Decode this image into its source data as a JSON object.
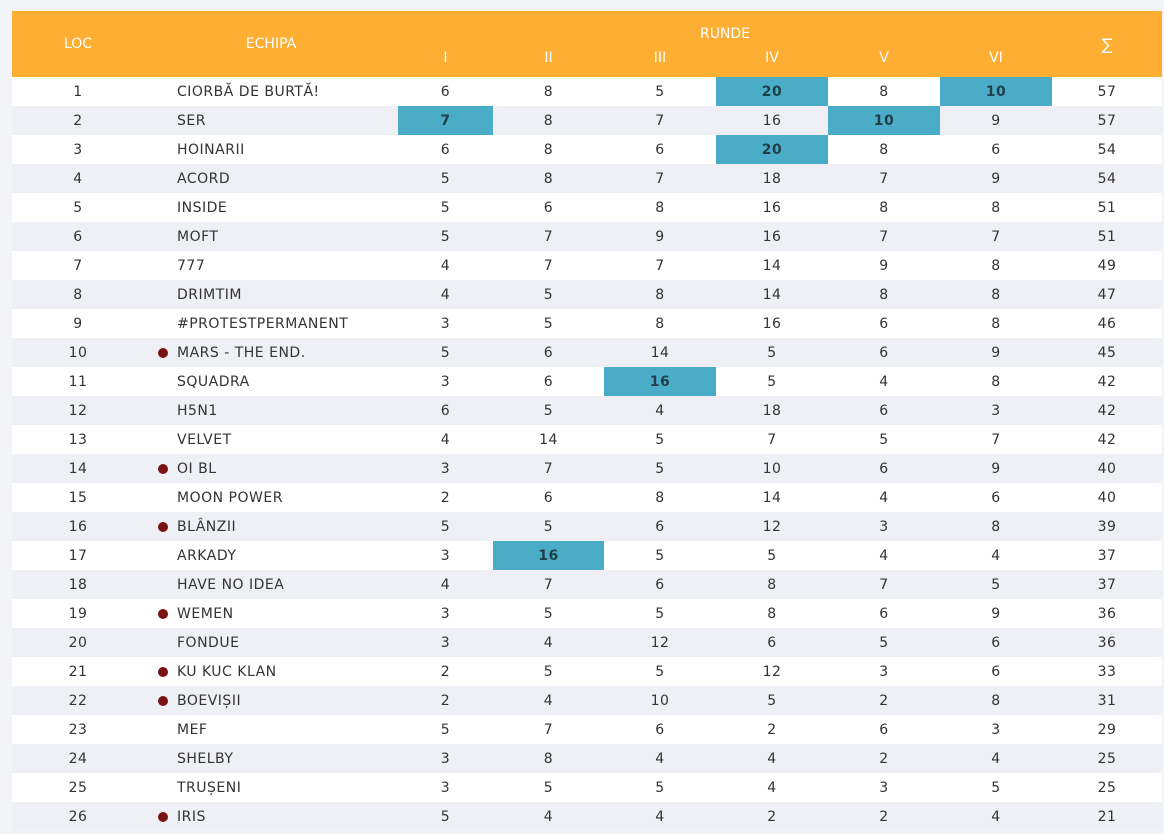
{
  "headers": {
    "loc": "LOC",
    "team": "ECHIPA",
    "rounds_group": "RUNDE",
    "rounds": [
      "I",
      "II",
      "III",
      "IV",
      "V",
      "VI"
    ],
    "sum": "∑"
  },
  "colors": {
    "header_bg": "#fdae33",
    "highlight": "#4aacc7",
    "marker_dot": "#7b1212",
    "row_alt": "#eef0f6"
  },
  "rows": [
    {
      "loc": "1",
      "team": "CIORBĂ DE BURTĂ!",
      "marker": false,
      "rounds": [
        "6",
        "8",
        "5",
        "20",
        "8",
        "10"
      ],
      "highlight": [
        false,
        false,
        false,
        true,
        false,
        true
      ],
      "sum": "57"
    },
    {
      "loc": "2",
      "team": "SER",
      "marker": false,
      "rounds": [
        "7",
        "8",
        "7",
        "16",
        "10",
        "9"
      ],
      "highlight": [
        true,
        false,
        false,
        false,
        true,
        false
      ],
      "sum": "57"
    },
    {
      "loc": "3",
      "team": "HOINARII",
      "marker": false,
      "rounds": [
        "6",
        "8",
        "6",
        "20",
        "8",
        "6"
      ],
      "highlight": [
        false,
        false,
        false,
        true,
        false,
        false
      ],
      "sum": "54"
    },
    {
      "loc": "4",
      "team": "ACORD",
      "marker": false,
      "rounds": [
        "5",
        "8",
        "7",
        "18",
        "7",
        "9"
      ],
      "highlight": [
        false,
        false,
        false,
        false,
        false,
        false
      ],
      "sum": "54"
    },
    {
      "loc": "5",
      "team": "INSIDE",
      "marker": false,
      "rounds": [
        "5",
        "6",
        "8",
        "16",
        "8",
        "8"
      ],
      "highlight": [
        false,
        false,
        false,
        false,
        false,
        false
      ],
      "sum": "51"
    },
    {
      "loc": "6",
      "team": "MOFT",
      "marker": false,
      "rounds": [
        "5",
        "7",
        "9",
        "16",
        "7",
        "7"
      ],
      "highlight": [
        false,
        false,
        false,
        false,
        false,
        false
      ],
      "sum": "51"
    },
    {
      "loc": "7",
      "team": "777",
      "marker": false,
      "rounds": [
        "4",
        "7",
        "7",
        "14",
        "9",
        "8"
      ],
      "highlight": [
        false,
        false,
        false,
        false,
        false,
        false
      ],
      "sum": "49"
    },
    {
      "loc": "8",
      "team": "DRIMTIM",
      "marker": false,
      "rounds": [
        "4",
        "5",
        "8",
        "14",
        "8",
        "8"
      ],
      "highlight": [
        false,
        false,
        false,
        false,
        false,
        false
      ],
      "sum": "47"
    },
    {
      "loc": "9",
      "team": "#PROTESTPERMANENT",
      "marker": false,
      "rounds": [
        "3",
        "5",
        "8",
        "16",
        "6",
        "8"
      ],
      "highlight": [
        false,
        false,
        false,
        false,
        false,
        false
      ],
      "sum": "46"
    },
    {
      "loc": "10",
      "team": "MARS - THE END.",
      "marker": true,
      "rounds": [
        "5",
        "6",
        "14",
        "5",
        "6",
        "9"
      ],
      "highlight": [
        false,
        false,
        false,
        false,
        false,
        false
      ],
      "sum": "45"
    },
    {
      "loc": "11",
      "team": "SQUADRA",
      "marker": false,
      "rounds": [
        "3",
        "6",
        "16",
        "5",
        "4",
        "8"
      ],
      "highlight": [
        false,
        false,
        true,
        false,
        false,
        false
      ],
      "sum": "42"
    },
    {
      "loc": "12",
      "team": "H5N1",
      "marker": false,
      "rounds": [
        "6",
        "5",
        "4",
        "18",
        "6",
        "3"
      ],
      "highlight": [
        false,
        false,
        false,
        false,
        false,
        false
      ],
      "sum": "42"
    },
    {
      "loc": "13",
      "team": "VELVET",
      "marker": false,
      "rounds": [
        "4",
        "14",
        "5",
        "7",
        "5",
        "7"
      ],
      "highlight": [
        false,
        false,
        false,
        false,
        false,
        false
      ],
      "sum": "42"
    },
    {
      "loc": "14",
      "team": "OI BL",
      "marker": true,
      "rounds": [
        "3",
        "7",
        "5",
        "10",
        "6",
        "9"
      ],
      "highlight": [
        false,
        false,
        false,
        false,
        false,
        false
      ],
      "sum": "40"
    },
    {
      "loc": "15",
      "team": "MOON POWER",
      "marker": false,
      "rounds": [
        "2",
        "6",
        "8",
        "14",
        "4",
        "6"
      ],
      "highlight": [
        false,
        false,
        false,
        false,
        false,
        false
      ],
      "sum": "40"
    },
    {
      "loc": "16",
      "team": "BLÂNZII",
      "marker": true,
      "rounds": [
        "5",
        "5",
        "6",
        "12",
        "3",
        "8"
      ],
      "highlight": [
        false,
        false,
        false,
        false,
        false,
        false
      ],
      "sum": "39"
    },
    {
      "loc": "17",
      "team": "ARKADY",
      "marker": false,
      "rounds": [
        "3",
        "16",
        "5",
        "5",
        "4",
        "4"
      ],
      "highlight": [
        false,
        true,
        false,
        false,
        false,
        false
      ],
      "sum": "37"
    },
    {
      "loc": "18",
      "team": "HAVE NO IDEA",
      "marker": false,
      "rounds": [
        "4",
        "7",
        "6",
        "8",
        "7",
        "5"
      ],
      "highlight": [
        false,
        false,
        false,
        false,
        false,
        false
      ],
      "sum": "37"
    },
    {
      "loc": "19",
      "team": "WEMEN",
      "marker": true,
      "rounds": [
        "3",
        "5",
        "5",
        "8",
        "6",
        "9"
      ],
      "highlight": [
        false,
        false,
        false,
        false,
        false,
        false
      ],
      "sum": "36"
    },
    {
      "loc": "20",
      "team": "FONDUE",
      "marker": false,
      "rounds": [
        "3",
        "4",
        "12",
        "6",
        "5",
        "6"
      ],
      "highlight": [
        false,
        false,
        false,
        false,
        false,
        false
      ],
      "sum": "36"
    },
    {
      "loc": "21",
      "team": "KU KUC KLAN",
      "marker": true,
      "rounds": [
        "2",
        "5",
        "5",
        "12",
        "3",
        "6"
      ],
      "highlight": [
        false,
        false,
        false,
        false,
        false,
        false
      ],
      "sum": "33"
    },
    {
      "loc": "22",
      "team": "BOEVIȘII",
      "marker": true,
      "rounds": [
        "2",
        "4",
        "10",
        "5",
        "2",
        "8"
      ],
      "highlight": [
        false,
        false,
        false,
        false,
        false,
        false
      ],
      "sum": "31"
    },
    {
      "loc": "23",
      "team": "MEF",
      "marker": false,
      "rounds": [
        "5",
        "7",
        "6",
        "2",
        "6",
        "3"
      ],
      "highlight": [
        false,
        false,
        false,
        false,
        false,
        false
      ],
      "sum": "29"
    },
    {
      "loc": "24",
      "team": "SHELBY",
      "marker": false,
      "rounds": [
        "3",
        "8",
        "4",
        "4",
        "2",
        "4"
      ],
      "highlight": [
        false,
        false,
        false,
        false,
        false,
        false
      ],
      "sum": "25"
    },
    {
      "loc": "25",
      "team": "TRUȘENI",
      "marker": false,
      "rounds": [
        "3",
        "5",
        "5",
        "4",
        "3",
        "5"
      ],
      "highlight": [
        false,
        false,
        false,
        false,
        false,
        false
      ],
      "sum": "25"
    },
    {
      "loc": "26",
      "team": "IRIS",
      "marker": true,
      "rounds": [
        "5",
        "4",
        "4",
        "2",
        "2",
        "4"
      ],
      "highlight": [
        false,
        false,
        false,
        false,
        false,
        false
      ],
      "sum": "21"
    }
  ]
}
